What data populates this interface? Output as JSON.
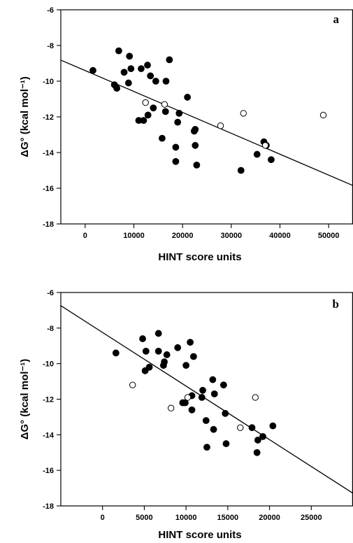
{
  "chart_data": [
    {
      "type": "scatter",
      "panel_label": "a",
      "ylabel": "ΔG° (kcal mol⁻¹)",
      "xlabel": "HINT score units",
      "xlim": [
        -5000,
        55000
      ],
      "ylim": [
        -18,
        -6
      ],
      "xticks": [
        {
          "value": 0,
          "label": "0"
        },
        {
          "value": 10000,
          "label": "10000"
        },
        {
          "value": 20000,
          "label": "20000"
        },
        {
          "value": 30000,
          "label": "30000"
        },
        {
          "value": 40000,
          "label": "40000"
        },
        {
          "value": 50000,
          "label": "50000"
        }
      ],
      "yticks": [
        {
          "value": -6,
          "label": "-6"
        },
        {
          "value": -8,
          "label": "-8"
        },
        {
          "value": -10,
          "label": "-10"
        },
        {
          "value": -12,
          "label": "-12"
        },
        {
          "value": -14,
          "label": "-14"
        },
        {
          "value": -16,
          "label": "-16"
        },
        {
          "value": -18,
          "label": "-18"
        }
      ],
      "series": [
        {
          "marker": "filled",
          "points": [
            [
              1600,
              -9.4
            ],
            [
              6000,
              -10.2
            ],
            [
              6500,
              -10.4
            ],
            [
              6900,
              -8.3
            ],
            [
              8000,
              -9.5
            ],
            [
              8900,
              -10.1
            ],
            [
              9100,
              -8.6
            ],
            [
              9400,
              -9.3
            ],
            [
              11000,
              -12.2
            ],
            [
              11500,
              -9.3
            ],
            [
              12000,
              -12.2
            ],
            [
              12800,
              -9.1
            ],
            [
              12900,
              -11.9
            ],
            [
              13400,
              -9.7
            ],
            [
              14000,
              -11.5
            ],
            [
              14500,
              -10.0
            ],
            [
              15800,
              -13.2
            ],
            [
              16500,
              -11.7
            ],
            [
              16600,
              -10.0
            ],
            [
              17300,
              -8.8
            ],
            [
              18600,
              -13.7
            ],
            [
              18600,
              -14.5
            ],
            [
              19000,
              -12.3
            ],
            [
              19300,
              -11.8
            ],
            [
              21000,
              -10.9
            ],
            [
              22400,
              -12.8
            ],
            [
              22600,
              -12.7
            ],
            [
              22600,
              -13.6
            ],
            [
              22900,
              -14.7
            ],
            [
              32000,
              -15.0
            ],
            [
              35300,
              -14.1
            ],
            [
              36700,
              -13.4
            ],
            [
              37200,
              -13.6
            ],
            [
              38200,
              -14.4
            ]
          ]
        },
        {
          "marker": "open",
          "points": [
            [
              12400,
              -11.2
            ],
            [
              16300,
              -11.3
            ],
            [
              27800,
              -12.5
            ],
            [
              32500,
              -11.8
            ],
            [
              37000,
              -13.6
            ],
            [
              48900,
              -11.9
            ]
          ]
        }
      ],
      "fit_line": {
        "x": [
          -5000,
          55000
        ],
        "y": [
          -8.82,
          -15.85
        ]
      }
    },
    {
      "type": "scatter",
      "panel_label": "b",
      "ylabel": "ΔG° (kcal mol⁻¹)",
      "xlabel": "HINT score units",
      "xlim": [
        -5000,
        30000
      ],
      "ylim": [
        -18,
        -6
      ],
      "xticks": [
        {
          "value": 0,
          "label": "0"
        },
        {
          "value": 5000,
          "label": "5000"
        },
        {
          "value": 10000,
          "label": "10000"
        },
        {
          "value": 15000,
          "label": "15000"
        },
        {
          "value": 20000,
          "label": "20000"
        },
        {
          "value": 25000,
          "label": "25000"
        }
      ],
      "yticks": [
        {
          "value": -6,
          "label": "-6"
        },
        {
          "value": -8,
          "label": "-8"
        },
        {
          "value": -10,
          "label": "-10"
        },
        {
          "value": -12,
          "label": "-12"
        },
        {
          "value": -14,
          "label": "-14"
        },
        {
          "value": -16,
          "label": "-16"
        },
        {
          "value": -18,
          "label": "-18"
        }
      ],
      "series": [
        {
          "marker": "filled",
          "points": [
            [
              1600,
              -9.4
            ],
            [
              4800,
              -8.6
            ],
            [
              5100,
              -10.4
            ],
            [
              5200,
              -9.3
            ],
            [
              5600,
              -10.2
            ],
            [
              6700,
              -8.3
            ],
            [
              6700,
              -9.3
            ],
            [
              7300,
              -10.1
            ],
            [
              7400,
              -9.9
            ],
            [
              7700,
              -9.5
            ],
            [
              9000,
              -9.1
            ],
            [
              9600,
              -12.2
            ],
            [
              9900,
              -12.2
            ],
            [
              10000,
              -10.1
            ],
            [
              10500,
              -8.8
            ],
            [
              10700,
              -11.8
            ],
            [
              10700,
              -12.6
            ],
            [
              10900,
              -9.6
            ],
            [
              11900,
              -11.9
            ],
            [
              12000,
              -11.5
            ],
            [
              12400,
              -13.2
            ],
            [
              12500,
              -14.7
            ],
            [
              13200,
              -10.9
            ],
            [
              13300,
              -13.7
            ],
            [
              13400,
              -11.7
            ],
            [
              14500,
              -11.2
            ],
            [
              14700,
              -12.8
            ],
            [
              14800,
              -14.5
            ],
            [
              17900,
              -13.6
            ],
            [
              18500,
              -15.0
            ],
            [
              18600,
              -14.3
            ],
            [
              19200,
              -14.1
            ],
            [
              20400,
              -13.5
            ]
          ]
        },
        {
          "marker": "open",
          "points": [
            [
              3600,
              -11.2
            ],
            [
              8200,
              -12.5
            ],
            [
              10200,
              -11.9
            ],
            [
              16500,
              -13.6
            ],
            [
              18300,
              -11.9
            ]
          ]
        }
      ],
      "fit_line": {
        "x": [
          -5000,
          30000
        ],
        "y": [
          -6.74,
          -17.29
        ]
      }
    }
  ]
}
